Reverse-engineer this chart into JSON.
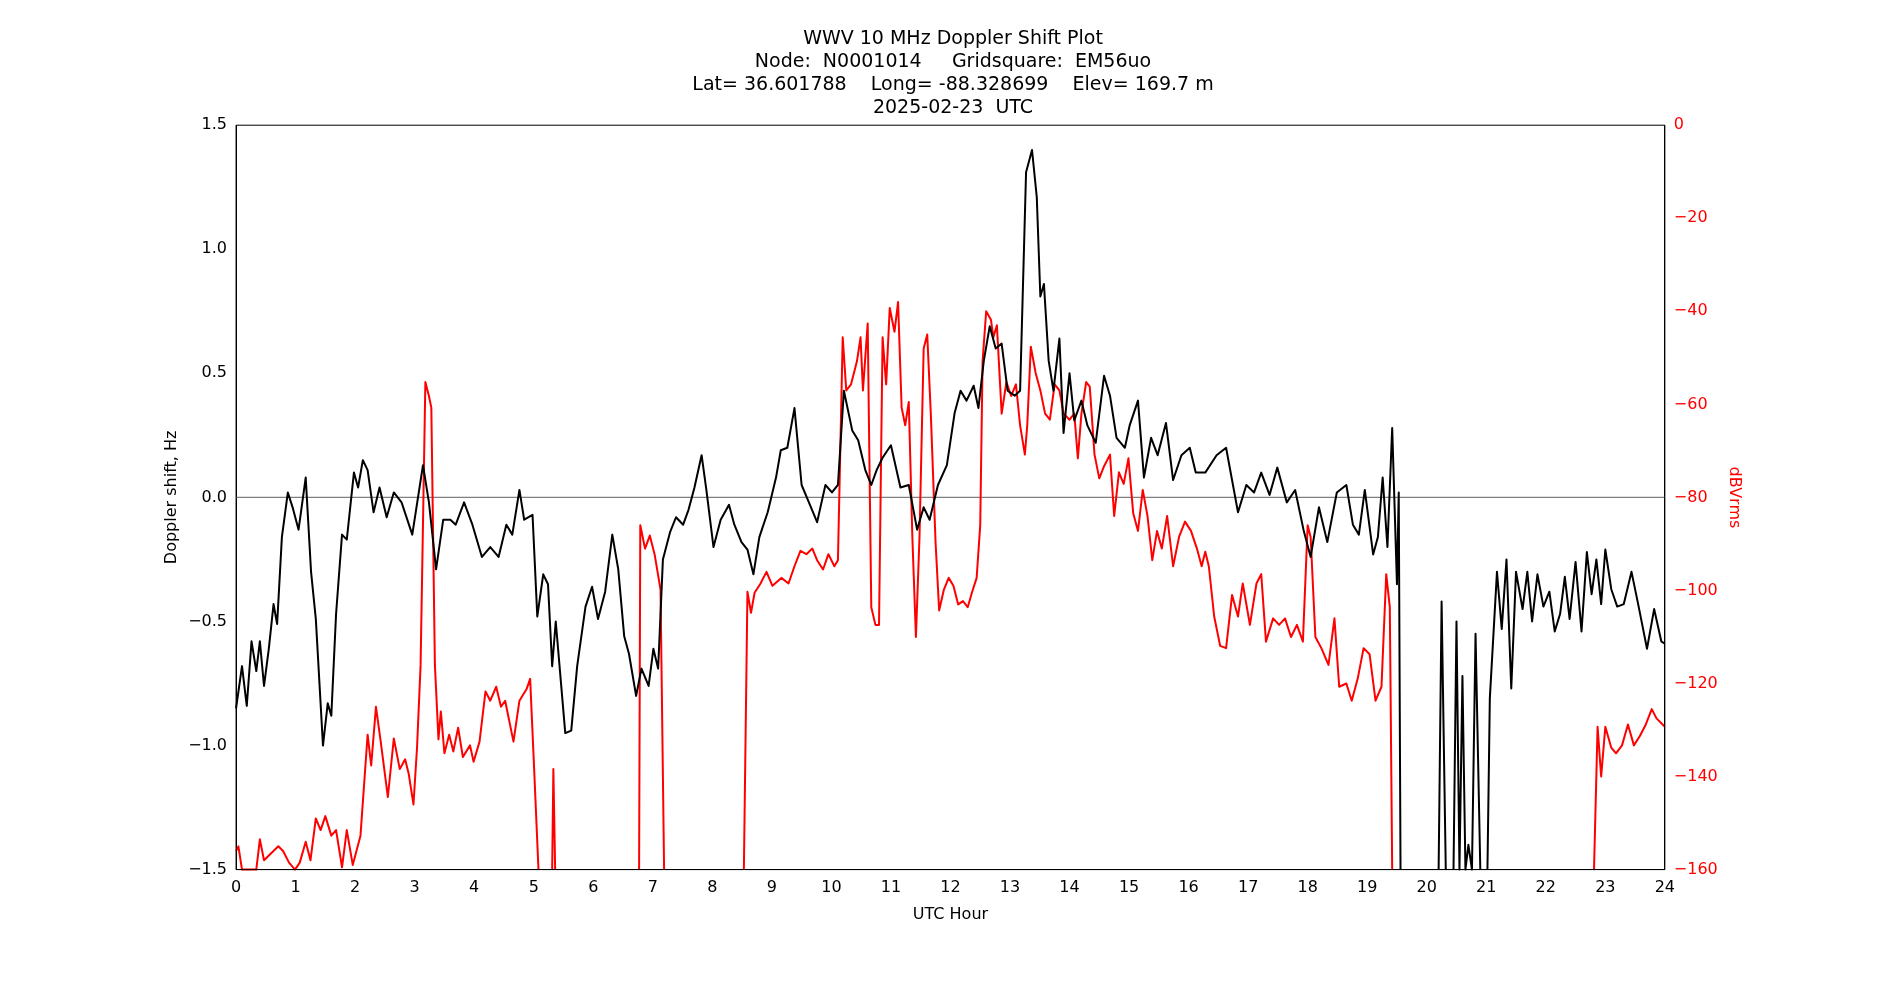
{
  "chart_data": {
    "type": "line",
    "title": "WWV 10 MHz Doppler Shift Plot\nNode:  N0001014     Gridsquare:  EM56uo\nLat= 36.601788    Long= -88.328699    Elev= 169.7 m\n2025-02-23  UTC",
    "xlabel": "UTC Hour",
    "ylabel": "Doppler shift, Hz",
    "y2label": "dBVrms",
    "xlim": [
      0,
      24
    ],
    "xticks": [
      0,
      1,
      2,
      3,
      4,
      5,
      6,
      7,
      8,
      9,
      10,
      11,
      12,
      13,
      14,
      15,
      16,
      17,
      18,
      19,
      20,
      21,
      22,
      23,
      24
    ],
    "ylim": [
      -1.5,
      1.5
    ],
    "yticks": [
      {
        "value": -1.5,
        "label": "−1.5"
      },
      {
        "value": -1,
        "label": "−1.0"
      },
      {
        "value": -0.5,
        "label": "−0.5"
      },
      {
        "value": 0,
        "label": "0.0"
      },
      {
        "value": 0.5,
        "label": "0.5"
      },
      {
        "value": 1,
        "label": "1.0"
      },
      {
        "value": 1.5,
        "label": "1.5"
      }
    ],
    "y2lim": [
      -160,
      0
    ],
    "y2ticks": [
      {
        "value": -160,
        "label": "−160"
      },
      {
        "value": -140,
        "label": "−140"
      },
      {
        "value": -120,
        "label": "−120"
      },
      {
        "value": -100,
        "label": "−100"
      },
      {
        "value": -80,
        "label": "−80"
      },
      {
        "value": -60,
        "label": "−60"
      },
      {
        "value": -40,
        "label": "−40"
      },
      {
        "value": -20,
        "label": "−20"
      },
      0
    ],
    "grid": false,
    "legend": false,
    "ref_lines": [
      {
        "axis": "y",
        "value": 0,
        "color": "#808080"
      }
    ],
    "series": [
      {
        "color": "#000000",
        "axis": "y",
        "x": [
          0,
          0.1,
          0.18,
          0.26,
          0.34,
          0.4,
          0.47,
          0.55,
          0.63,
          0.69,
          0.77,
          0.87,
          0.95,
          1.05,
          1.17,
          1.26,
          1.34,
          1.46,
          1.54,
          1.6,
          1.68,
          1.78,
          1.86,
          1.98,
          2.05,
          2.13,
          2.21,
          2.31,
          2.41,
          2.53,
          2.65,
          2.78,
          2.96,
          3.14,
          3.24,
          3.36,
          3.48,
          3.6,
          3.69,
          3.83,
          3.97,
          4.13,
          4.27,
          4.41,
          4.54,
          4.64,
          4.76,
          4.84,
          4.98,
          5.06,
          5.16,
          5.24,
          5.31,
          5.37,
          5.53,
          5.63,
          5.73,
          5.87,
          5.98,
          6.08,
          6.2,
          6.32,
          6.42,
          6.52,
          6.6,
          6.72,
          6.81,
          6.93,
          7.01,
          7.09,
          7.17,
          7.29,
          7.39,
          7.51,
          7.6,
          7.7,
          7.82,
          7.9,
          8.02,
          8.14,
          8.28,
          8.37,
          8.49,
          8.59,
          8.69,
          8.79,
          8.93,
          9.07,
          9.15,
          9.26,
          9.38,
          9.5,
          9.64,
          9.76,
          9.9,
          10.01,
          10.11,
          10.21,
          10.35,
          10.45,
          10.57,
          10.67,
          10.76,
          10.86,
          11.0,
          11.16,
          11.3,
          11.44,
          11.55,
          11.65,
          11.79,
          11.94,
          12.07,
          12.17,
          12.27,
          12.39,
          12.47,
          12.56,
          12.66,
          12.76,
          12.86,
          12.96,
          13.08,
          13.17,
          13.27,
          13.37,
          13.45,
          13.51,
          13.57,
          13.65,
          13.73,
          13.83,
          13.9,
          14.0,
          14.08,
          14.2,
          14.3,
          14.44,
          14.58,
          14.68,
          14.79,
          14.93,
          15.01,
          15.15,
          15.25,
          15.37,
          15.48,
          15.62,
          15.74,
          15.88,
          16.02,
          16.12,
          16.28,
          16.47,
          16.63,
          16.83,
          16.97,
          17.1,
          17.22,
          17.36,
          17.49,
          17.65,
          17.79,
          17.93,
          18.05,
          18.19,
          18.33,
          18.49,
          18.65,
          18.76,
          18.86,
          18.96,
          19.1,
          19.18,
          19.26,
          19.34,
          19.42,
          19.5,
          19.53,
          19.56,
          19.6,
          20.2,
          20.25,
          20.32,
          20.38,
          20.45,
          20.5,
          20.55,
          20.6,
          20.65,
          20.7,
          20.76,
          20.82,
          20.9,
          21.0,
          21.02,
          21.06,
          21.18,
          21.26,
          21.34,
          21.42,
          21.5,
          21.61,
          21.69,
          21.77,
          21.86,
          21.96,
          22.06,
          22.15,
          22.24,
          22.32,
          22.4,
          22.5,
          22.6,
          22.69,
          22.77,
          22.85,
          22.93,
          23.0,
          23.1,
          23.2,
          23.31,
          23.44,
          23.56,
          23.7,
          23.82,
          23.94,
          24
        ],
        "values": [
          -0.85,
          -0.68,
          -0.84,
          -0.58,
          -0.7,
          -0.58,
          -0.76,
          -0.61,
          -0.43,
          -0.51,
          -0.16,
          0.02,
          -0.04,
          -0.13,
          0.08,
          -0.3,
          -0.49,
          -1.0,
          -0.83,
          -0.88,
          -0.47,
          -0.15,
          -0.17,
          0.1,
          0.04,
          0.15,
          0.11,
          -0.06,
          0.04,
          -0.08,
          0.02,
          -0.02,
          -0.15,
          0.13,
          -0.02,
          -0.29,
          -0.09,
          -0.09,
          -0.11,
          -0.02,
          -0.11,
          -0.24,
          -0.2,
          -0.24,
          -0.11,
          -0.15,
          0.03,
          -0.09,
          -0.07,
          -0.48,
          -0.31,
          -0.35,
          -0.68,
          -0.5,
          -0.95,
          -0.94,
          -0.68,
          -0.44,
          -0.36,
          -0.49,
          -0.38,
          -0.15,
          -0.29,
          -0.56,
          -0.63,
          -0.8,
          -0.69,
          -0.76,
          -0.61,
          -0.69,
          -0.25,
          -0.14,
          -0.08,
          -0.11,
          -0.05,
          0.04,
          0.17,
          0.03,
          -0.2,
          -0.09,
          -0.03,
          -0.11,
          -0.18,
          -0.21,
          -0.31,
          -0.16,
          -0.06,
          0.08,
          0.19,
          0.2,
          0.36,
          0.05,
          -0.03,
          -0.1,
          0.05,
          0.02,
          0.05,
          0.43,
          0.27,
          0.23,
          0.11,
          0.05,
          0.11,
          0.16,
          0.21,
          0.04,
          0.05,
          -0.13,
          -0.04,
          -0.09,
          0.05,
          0.13,
          0.34,
          0.43,
          0.39,
          0.45,
          0.36,
          0.55,
          0.69,
          0.6,
          0.62,
          0.43,
          0.41,
          0.43,
          1.31,
          1.4,
          1.21,
          0.81,
          0.86,
          0.55,
          0.43,
          0.64,
          0.26,
          0.5,
          0.31,
          0.39,
          0.29,
          0.22,
          0.49,
          0.41,
          0.24,
          0.2,
          0.29,
          0.39,
          0.08,
          0.24,
          0.17,
          0.3,
          0.07,
          0.17,
          0.2,
          0.1,
          0.1,
          0.17,
          0.2,
          -0.06,
          0.05,
          0.02,
          0.1,
          0.01,
          0.12,
          -0.02,
          0.03,
          -0.13,
          -0.24,
          -0.04,
          -0.18,
          0.02,
          0.05,
          -0.11,
          -0.15,
          0.03,
          -0.23,
          -0.16,
          0.08,
          -0.2,
          0.28,
          -0.35,
          0.02,
          -1.5,
          null,
          -1.5,
          -0.42,
          -1.5,
          null,
          -1.5,
          -0.5,
          -1.5,
          -0.72,
          -1.5,
          -1.4,
          -1.5,
          -0.55,
          -1.5,
          null,
          -1.5,
          -0.81,
          -0.3,
          -0.53,
          -0.25,
          -0.77,
          -0.3,
          -0.45,
          -0.3,
          -0.5,
          -0.31,
          -0.44,
          -0.38,
          -0.54,
          -0.47,
          -0.32,
          -0.49,
          -0.26,
          -0.54,
          -0.22,
          -0.39,
          -0.25,
          -0.43,
          -0.21,
          -0.37,
          -0.44,
          -0.43,
          -0.3,
          -0.44,
          -0.61,
          -0.45,
          -0.58,
          -0.59
        ]
      },
      {
        "color": "#ff0000",
        "axis": "y2",
        "x": [
          0,
          0.04,
          0.1,
          0.2,
          0.34,
          0.4,
          0.47,
          0.59,
          0.71,
          0.79,
          0.89,
          0.99,
          1.07,
          1.17,
          1.25,
          1.34,
          1.42,
          1.5,
          1.6,
          1.68,
          1.78,
          1.86,
          1.96,
          2.09,
          2.21,
          2.27,
          2.35,
          2.43,
          2.55,
          2.65,
          2.75,
          2.84,
          2.9,
          2.98,
          3.04,
          3.1,
          3.18,
          3.24,
          3.28,
          3.34,
          3.4,
          3.44,
          3.5,
          3.58,
          3.65,
          3.73,
          3.81,
          3.93,
          3.99,
          4.09,
          4.19,
          4.27,
          4.37,
          4.45,
          4.52,
          4.66,
          4.76,
          4.88,
          4.94,
          5.0,
          5.08,
          5.15,
          5.28,
          5.31,
          5.33,
          5.36,
          5.4,
          6.74,
          6.77,
          6.79,
          6.87,
          6.95,
          7.03,
          7.13,
          7.19,
          7.25,
          8.5,
          8.53,
          8.59,
          8.65,
          8.71,
          8.81,
          8.91,
          9.01,
          9.16,
          9.28,
          9.38,
          9.48,
          9.58,
          9.68,
          9.76,
          9.86,
          9.95,
          10.05,
          10.11,
          10.19,
          10.25,
          10.33,
          10.43,
          10.49,
          10.53,
          10.61,
          10.67,
          10.74,
          10.8,
          10.86,
          10.92,
          10.98,
          11.06,
          11.12,
          11.18,
          11.24,
          11.3,
          11.36,
          11.42,
          11.48,
          11.55,
          11.61,
          11.67,
          11.75,
          11.81,
          11.89,
          11.97,
          12.05,
          12.13,
          12.21,
          12.29,
          12.36,
          12.44,
          12.5,
          12.54,
          12.6,
          12.68,
          12.72,
          12.78,
          12.86,
          12.94,
          13.02,
          13.1,
          13.17,
          13.25,
          13.29,
          13.35,
          13.43,
          13.51,
          13.59,
          13.67,
          13.75,
          13.83,
          13.9,
          14.0,
          14.08,
          14.14,
          14.2,
          14.28,
          14.34,
          14.42,
          14.5,
          14.58,
          14.68,
          14.75,
          14.83,
          14.91,
          14.99,
          15.07,
          15.15,
          15.23,
          15.31,
          15.39,
          15.47,
          15.55,
          15.64,
          15.74,
          15.84,
          15.94,
          16.04,
          16.14,
          16.22,
          16.28,
          16.34,
          16.43,
          16.53,
          16.63,
          16.73,
          16.83,
          16.91,
          17.03,
          17.14,
          17.22,
          17.3,
          17.42,
          17.52,
          17.62,
          17.72,
          17.82,
          17.92,
          18.0,
          18.05,
          18.13,
          18.23,
          18.35,
          18.45,
          18.53,
          18.65,
          18.74,
          18.84,
          18.94,
          19.04,
          19.14,
          19.24,
          19.32,
          19.38,
          19.42,
          19.45,
          22.74,
          22.81,
          22.87,
          22.93,
          23.0,
          23.1,
          23.18,
          23.28,
          23.38,
          23.48,
          23.58,
          23.68,
          23.78,
          23.86,
          24
        ],
        "values": [
          -156,
          -155,
          -160,
          -160,
          -160,
          -153.5,
          -158,
          -156.5,
          -155,
          -156,
          -158.5,
          -160,
          -158.5,
          -154,
          -158,
          -149,
          -151.5,
          -148.5,
          -152.7,
          -151.5,
          -159.5,
          -151.5,
          -159,
          -152.7,
          -131,
          -137.6,
          -125,
          -132.5,
          -144.4,
          -131.8,
          -138.4,
          -136.3,
          -139.4,
          -146,
          -133.8,
          -116,
          -55.2,
          -58.2,
          -60.7,
          -116,
          -132,
          -126,
          -135,
          -131,
          -134.6,
          -129.5,
          -135.8,
          -133.3,
          -136.8,
          -132.5,
          -121.7,
          -123.7,
          -120.7,
          -125,
          -123.7,
          -132.5,
          -123.7,
          -121.2,
          -119,
          -136.3,
          -160,
          null,
          null,
          -160,
          -138.4,
          -160,
          null,
          null,
          -160,
          -86,
          -91,
          -88.2,
          -92.2,
          -99.8,
          -160,
          null,
          null,
          -160,
          -100.3,
          -104.8,
          -100.5,
          -98.5,
          -96,
          -99,
          -97.3,
          -98.5,
          -94.8,
          -91.5,
          -92.2,
          -91,
          -93.5,
          -95.5,
          -92.2,
          -94.8,
          -93.5,
          -45.6,
          -57,
          -55.7,
          -50.7,
          -45.6,
          -57,
          -42.6,
          -103.6,
          -107.4,
          -107.4,
          -45.6,
          -55.7,
          -39.3,
          -44.4,
          -38,
          -60.7,
          -64.5,
          -59.5,
          -88.5,
          -110,
          -88.5,
          -48,
          -45,
          -62,
          -89.7,
          -104.3,
          -99.8,
          -97.3,
          -99,
          -103,
          -102.3,
          -103.6,
          -100.5,
          -97.3,
          -86,
          -50.7,
          -40,
          -41.8,
          -45.6,
          -43,
          -62,
          -55.2,
          -58.2,
          -55.7,
          -64.5,
          -70.8,
          -64.5,
          -47.6,
          -53.2,
          -57,
          -62,
          -63.3,
          -55.7,
          -57,
          -62,
          -63.3,
          -62,
          -71.6,
          -62,
          -55.2,
          -56.2,
          -70.8,
          -75.9,
          -73.3,
          -70.8,
          -84,
          -74.6,
          -77.1,
          -71.6,
          -83.4,
          -87.2,
          -78.4,
          -84,
          -93.5,
          -87.2,
          -91,
          -84,
          -94.8,
          -88.5,
          -85.2,
          -87.2,
          -91,
          -94.8,
          -91.7,
          -94.8,
          -105.6,
          -111.9,
          -112.4,
          -101,
          -105.6,
          -98.5,
          -107.4,
          -98.5,
          -96.5,
          -111,
          -106,
          -107.4,
          -106,
          -110,
          -107.4,
          -111,
          -86,
          -88.5,
          -110,
          -112.4,
          -116,
          -106,
          -120.7,
          -120,
          -123.7,
          -119,
          -112.4,
          -113.7,
          -123.7,
          -120.7,
          -96.5,
          -103.6,
          -160,
          null,
          null,
          -160,
          -129.3,
          -140,
          -129.3,
          -133.8,
          -135,
          -133.3,
          -128.8,
          -133.3,
          -131.3,
          -128.8,
          -125.5,
          -127.5,
          -129.3
        ]
      }
    ]
  }
}
